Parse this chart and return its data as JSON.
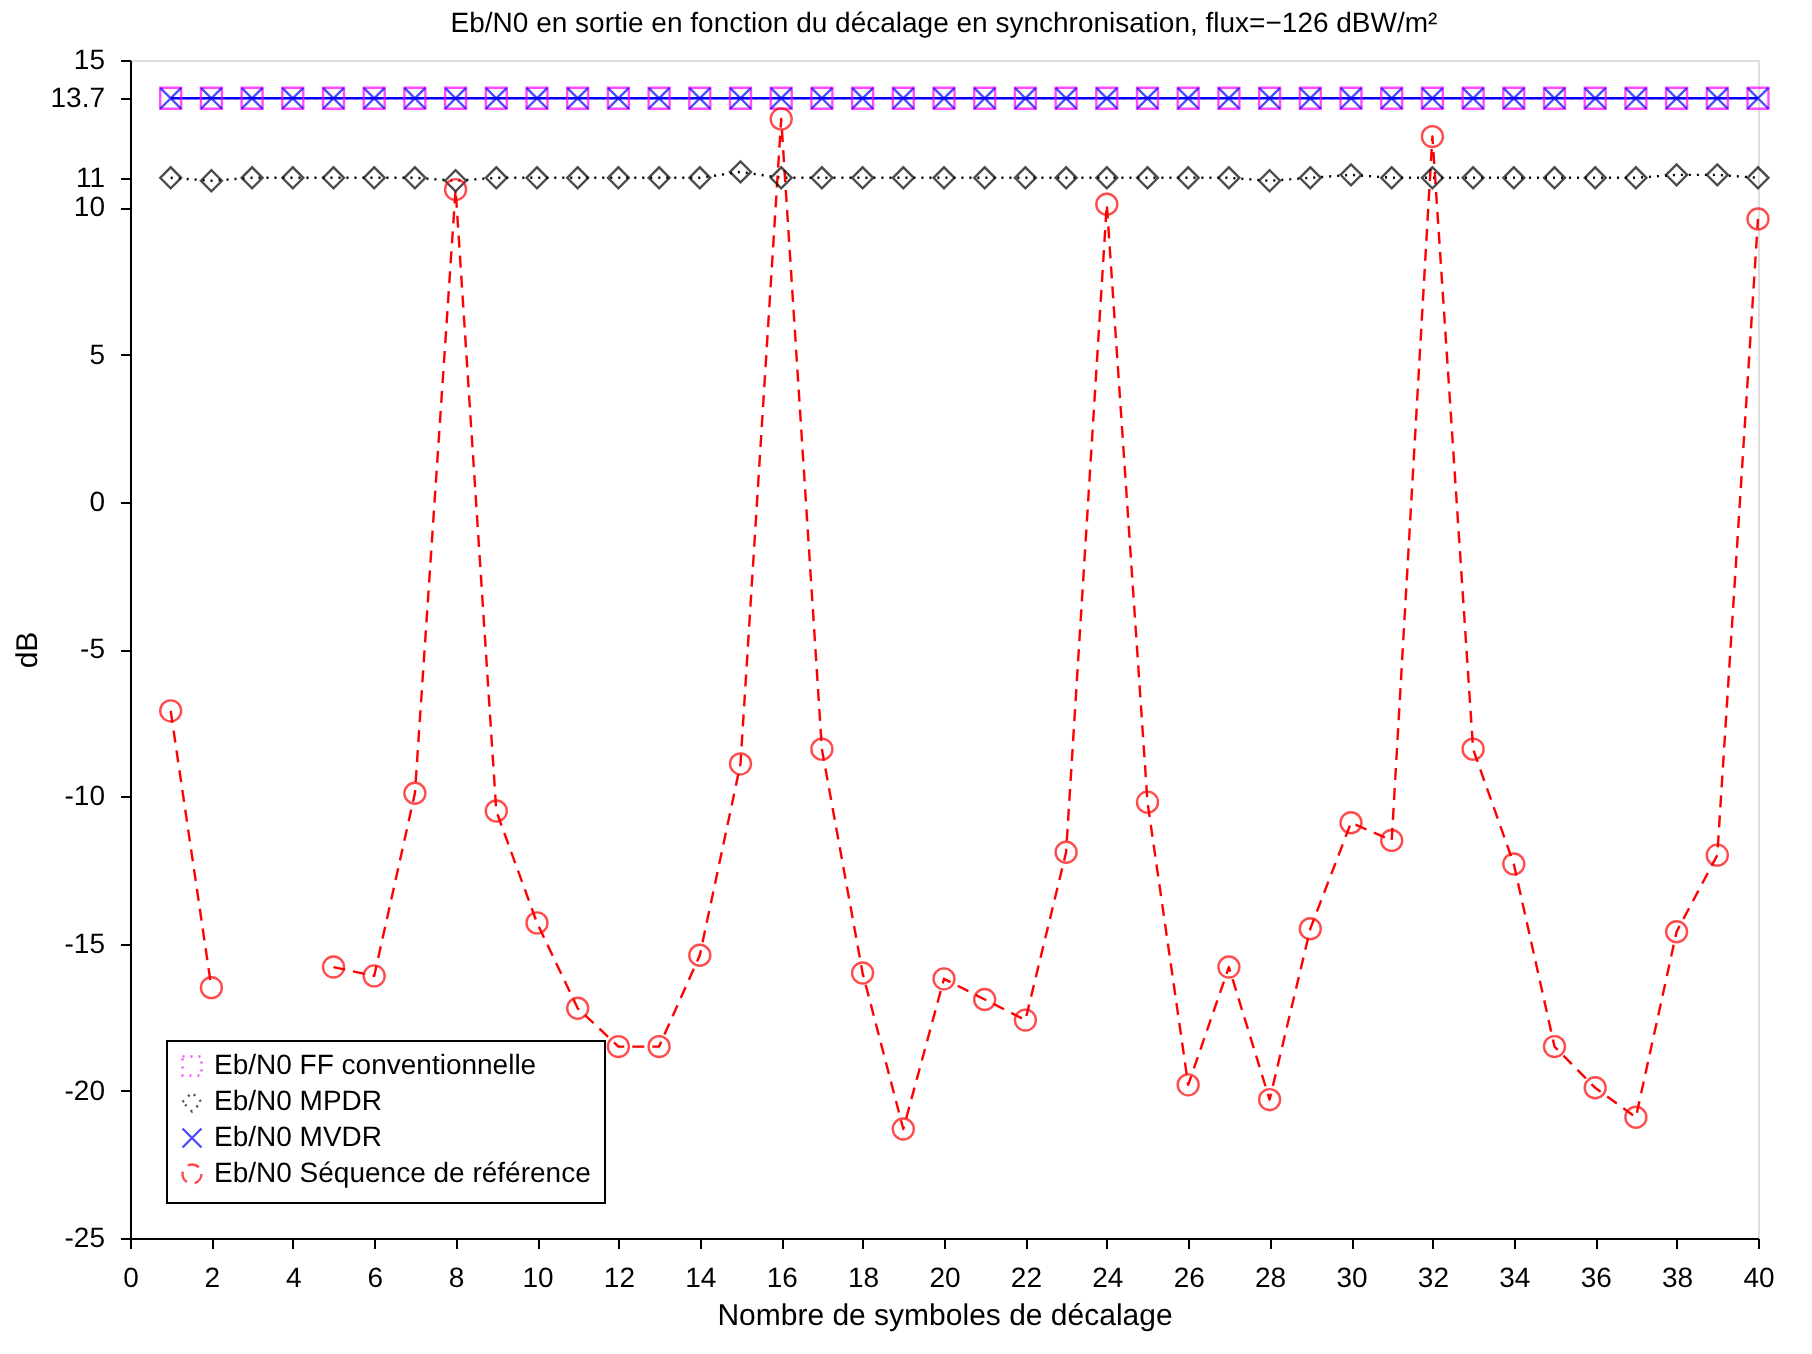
{
  "chart_data": {
    "type": "line",
    "title": "Eb/N0 en sortie en fonction du décalage en synchronisation, flux=−126 dBW/m²",
    "xlabel": "Nombre de symboles de décalage",
    "ylabel": "dB",
    "x": [
      1,
      2,
      3,
      4,
      5,
      6,
      7,
      8,
      9,
      10,
      11,
      12,
      13,
      14,
      15,
      16,
      17,
      18,
      19,
      20,
      21,
      22,
      23,
      24,
      25,
      26,
      27,
      28,
      29,
      30,
      31,
      32,
      33,
      34,
      35,
      36,
      37,
      38,
      39,
      40
    ],
    "series": [
      {
        "name": "Eb/N0 FF conventionnelle",
        "color": "#ff00ff",
        "marker": "square",
        "line_style": "dotted",
        "values": [
          13.7,
          13.7,
          13.7,
          13.7,
          13.7,
          13.7,
          13.7,
          13.7,
          13.7,
          13.7,
          13.7,
          13.7,
          13.7,
          13.7,
          13.7,
          13.7,
          13.7,
          13.7,
          13.7,
          13.7,
          13.7,
          13.7,
          13.7,
          13.7,
          13.7,
          13.7,
          13.7,
          13.7,
          13.7,
          13.7,
          13.7,
          13.7,
          13.7,
          13.7,
          13.7,
          13.7,
          13.7,
          13.7,
          13.7,
          13.7
        ]
      },
      {
        "name": "Eb/N0 MPDR",
        "color": "#000000",
        "marker": "diamond",
        "line_style": "dotted",
        "values": [
          11.0,
          10.9,
          11.0,
          11.0,
          11.0,
          11.0,
          11.0,
          10.9,
          11.0,
          11.0,
          11.0,
          11.0,
          11.0,
          11.0,
          11.2,
          11.0,
          11.0,
          11.0,
          11.0,
          11.0,
          11.0,
          11.0,
          11.0,
          11.0,
          11.0,
          11.0,
          11.0,
          10.9,
          11.0,
          11.1,
          11.0,
          11.0,
          11.0,
          11.0,
          11.0,
          11.0,
          11.0,
          11.1,
          11.1,
          11.0
        ]
      },
      {
        "name": "Eb/N0 MVDR",
        "color": "#0000ff",
        "marker": "cross",
        "line_style": "solid",
        "values": [
          13.7,
          13.7,
          13.7,
          13.7,
          13.7,
          13.7,
          13.7,
          13.7,
          13.7,
          13.7,
          13.7,
          13.7,
          13.7,
          13.7,
          13.7,
          13.7,
          13.7,
          13.7,
          13.7,
          13.7,
          13.7,
          13.7,
          13.7,
          13.7,
          13.7,
          13.7,
          13.7,
          13.7,
          13.7,
          13.7,
          13.7,
          13.7,
          13.7,
          13.7,
          13.7,
          13.7,
          13.7,
          13.7,
          13.7,
          13.7
        ]
      },
      {
        "name": "Eb/N0 Séquence de référence",
        "color": "#ff0000",
        "marker": "circle",
        "line_style": "dashed",
        "values": [
          -7.1,
          -16.5,
          null,
          null,
          -15.8,
          -16.1,
          -9.9,
          10.6,
          -10.5,
          -14.3,
          -17.2,
          -18.5,
          -18.5,
          -15.4,
          -8.9,
          13.0,
          -8.4,
          -16.0,
          -21.3,
          -16.2,
          -16.9,
          -17.6,
          -11.9,
          10.1,
          -10.2,
          -19.8,
          -15.8,
          -20.3,
          -14.5,
          -10.9,
          -11.5,
          12.4,
          -8.4,
          -12.3,
          -18.5,
          -19.9,
          -20.9,
          -14.6,
          -12.0,
          9.6
        ]
      }
    ],
    "xlim": [
      0,
      40
    ],
    "xticks": [
      0,
      2,
      4,
      6,
      8,
      10,
      12,
      14,
      16,
      18,
      20,
      22,
      24,
      26,
      28,
      30,
      32,
      34,
      36,
      38,
      40
    ],
    "ylim": [
      -25,
      15
    ],
    "yticks": [
      -25,
      -20,
      -15,
      -10,
      -5,
      0,
      5,
      10,
      11,
      13.7,
      15
    ],
    "grid": false,
    "legend": "bottom left"
  }
}
